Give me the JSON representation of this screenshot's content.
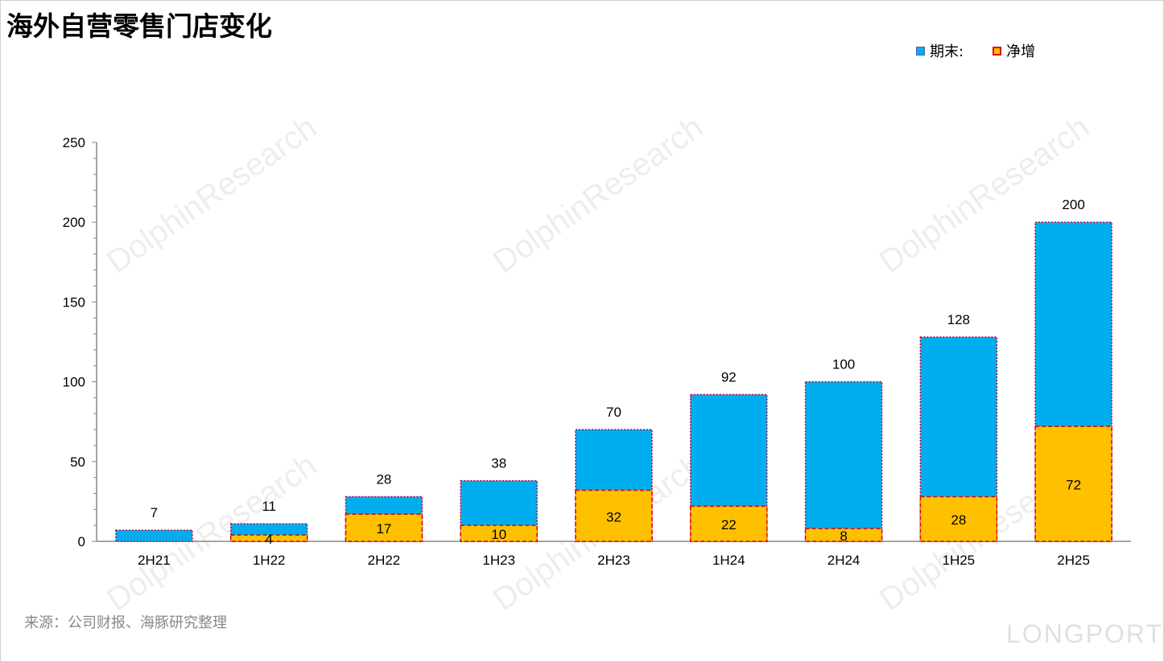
{
  "title": "海外自营零售门店变化",
  "source": "来源：公司财报、海豚研究整理",
  "watermark": "DolphinResearch",
  "logo": "LONGPORT",
  "colors": {
    "total": "#00aeef",
    "net": "#ffc000",
    "net_border": "#e00000",
    "total_border": "#c00040"
  },
  "chart_data": {
    "type": "bar",
    "title": "海外自营零售门店变化",
    "categories": [
      "2H21",
      "1H22",
      "2H22",
      "1H23",
      "2H23",
      "1H24",
      "2H24",
      "1H25",
      "2H25"
    ],
    "series": [
      {
        "name": "期末:",
        "values": [
          7,
          11,
          28,
          38,
          70,
          92,
          100,
          128,
          200
        ]
      },
      {
        "name": "净增",
        "values": [
          null,
          4,
          17,
          10,
          32,
          22,
          8,
          28,
          72
        ]
      }
    ],
    "ylim": [
      0,
      250
    ],
    "yticks": [
      0,
      50,
      100,
      150,
      200,
      250
    ],
    "grid": false,
    "legend": "top-right",
    "overlay": true
  }
}
